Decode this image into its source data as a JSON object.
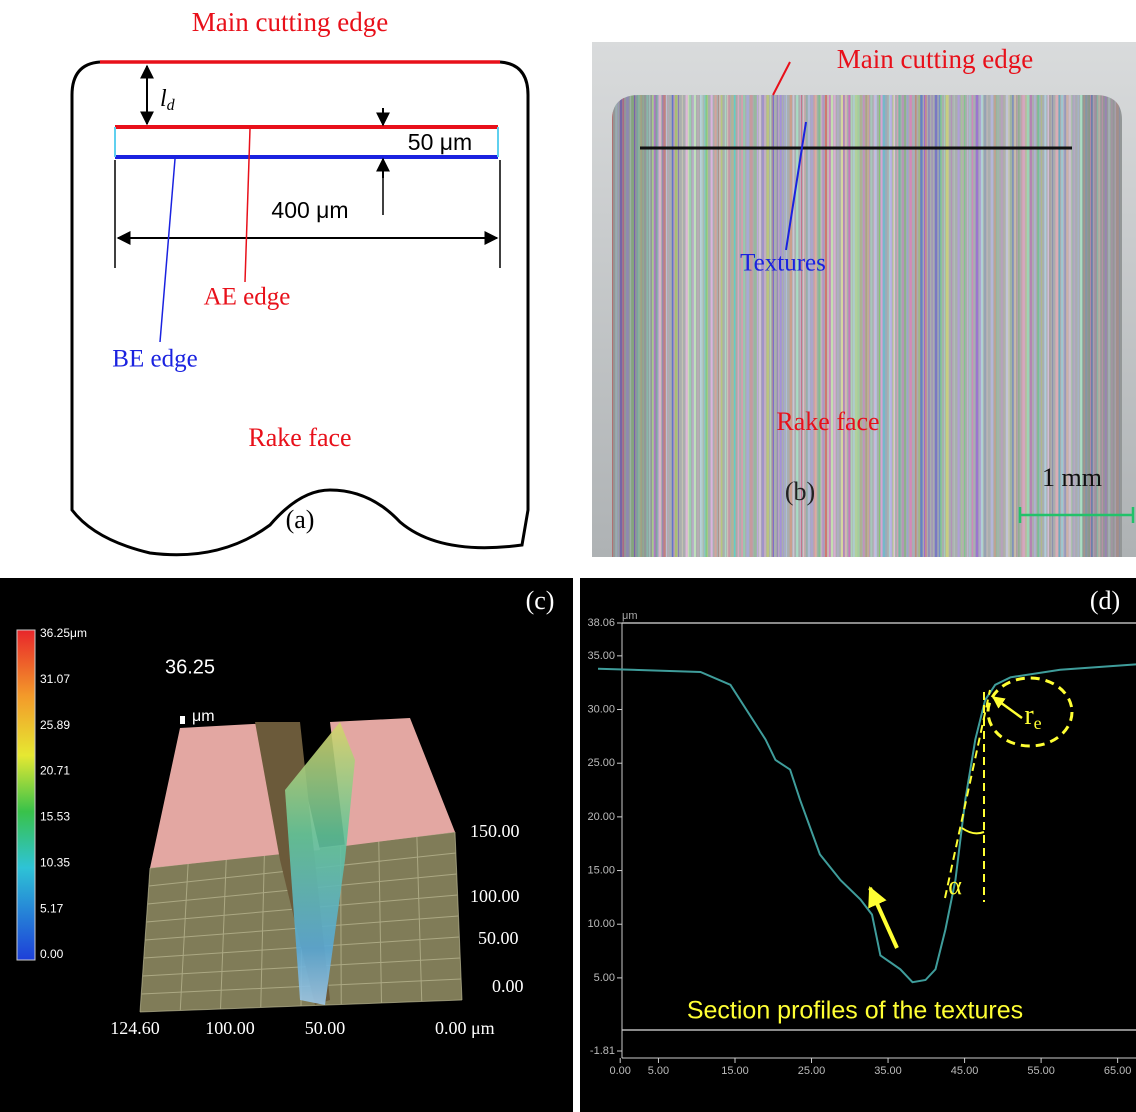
{
  "panel_a": {
    "title": "Main cutting edge",
    "ld": {
      "symbol": "l",
      "subscript": "d"
    },
    "dim_50": "50 μm",
    "dim_400": "400 μm",
    "ae": "AE edge",
    "be": "BE edge",
    "rake": "Rake face",
    "label": "(a)"
  },
  "panel_b": {
    "title": "Main cutting edge",
    "textures": "Textures",
    "rake": "Rake face",
    "label": "(b)",
    "scale": "1 mm"
  },
  "panel_c": {
    "label": "(c)",
    "colorbar": [
      "36.25μm",
      "31.07",
      "25.89",
      "20.71",
      "15.53",
      "10.35",
      "5.17",
      "0.00"
    ],
    "peak": "36.25",
    "peak_unit": "μm",
    "depth_axis": [
      "150.00",
      "100.00",
      "50.00",
      "0.00"
    ],
    "width_axis": [
      "124.60",
      "100.00",
      "50.00",
      "0.00 μm"
    ]
  },
  "chart_data": {
    "type": "line",
    "label": "(d)",
    "unit_label": "μm",
    "annotation": "Section profiles of the textures",
    "radius_label": {
      "symbol": "r",
      "subscript": "e"
    },
    "angle_label": "α",
    "color": "#3f9d9b",
    "x": [
      -2.9,
      10.5,
      14.4,
      19.0,
      20.3,
      22.2,
      23.5,
      26.1,
      28.8,
      31.4,
      32.9,
      34.0,
      36.6,
      38.2,
      39.9,
      41.2,
      42.5,
      43.8,
      45.1,
      46.4,
      47.7,
      49.0,
      51.0,
      57.5,
      67.4
    ],
    "values": [
      33.8,
      33.5,
      32.3,
      27.2,
      25.3,
      24.4,
      21.6,
      16.5,
      14.1,
      12.3,
      10.9,
      7.1,
      5.8,
      4.6,
      4.8,
      5.8,
      9.5,
      14.1,
      21.6,
      27.2,
      30.9,
      32.3,
      33.0,
      33.7,
      34.2
    ],
    "xlim": [
      -2.9,
      67.4
    ],
    "ylim": [
      -1.81,
      38.06
    ],
    "xticks": [
      {
        "value": 0,
        "label": "0.00"
      },
      {
        "value": 5,
        "label": "5.00"
      },
      {
        "value": 15,
        "label": "15.00"
      },
      {
        "value": 25,
        "label": "25.00"
      },
      {
        "value": 35,
        "label": "35.00"
      },
      {
        "value": 45,
        "label": "45.00"
      },
      {
        "value": 55,
        "label": "55.00"
      },
      {
        "value": 65,
        "label": "65.00"
      }
    ],
    "yticks": [
      38.06,
      {
        "value": 35,
        "label": "35.00"
      },
      {
        "value": 30,
        "label": "30.00"
      },
      {
        "value": 25,
        "label": "25.00"
      },
      {
        "value": 20,
        "label": "20.00"
      },
      {
        "value": 15,
        "label": "15.00"
      },
      {
        "value": 10,
        "label": "10.00"
      },
      {
        "value": 5,
        "label": "5.00"
      },
      -1.81
    ]
  }
}
